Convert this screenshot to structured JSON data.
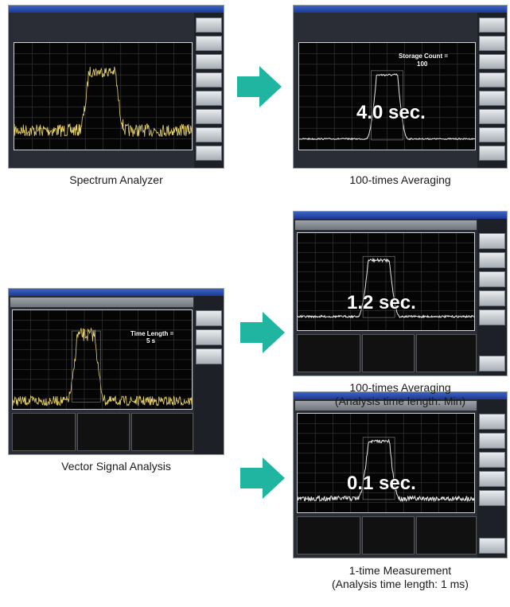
{
  "panels": {
    "spectrum_analyzer": {
      "caption": "Spectrum Analyzer"
    },
    "averaging_100": {
      "caption": "100-times Averaging",
      "time_label": "4.0 sec.",
      "storage_label": "Storage Count =",
      "storage_value": "100"
    },
    "vsa": {
      "caption": "Vector Signal Analysis",
      "time_length_label": "Time Length =",
      "time_length_value": "5 s"
    },
    "vsa_averaging_100": {
      "caption_line1": "100-times Averaging",
      "caption_line2": "(Analysis time length: Min)",
      "time_label": "1.2 sec."
    },
    "vsa_single": {
      "caption_line1": "1-time Measurement",
      "caption_line2": "(Analysis time length: 1 ms)",
      "time_label": "0.1 sec."
    }
  },
  "colors": {
    "arrow": "#1fb5a0",
    "trace_yellow": "#e8d36a",
    "trace_white": "#e6e6e6",
    "overlay_text": "#ffffff"
  }
}
